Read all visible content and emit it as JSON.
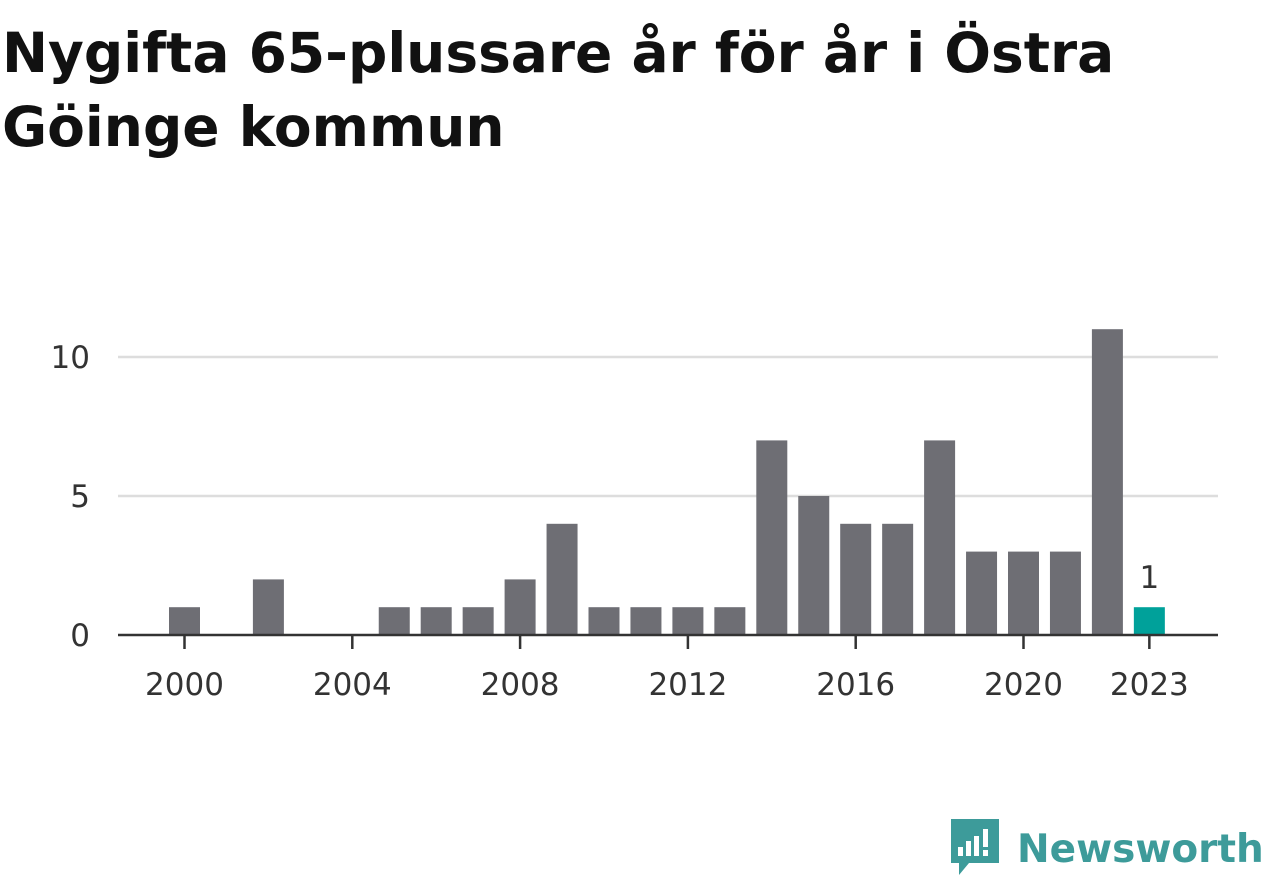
{
  "title": "Nygifta 65-plussare år för år i Östra Göinge kommun",
  "brand": {
    "name": "Newsworthy",
    "icon": "newsworthy-logo-icon",
    "color": "#3d9b9a"
  },
  "colors": {
    "bar": "#6e6e74",
    "highlight": "#00a19a",
    "grid": "#dddddd",
    "axis": "#333333"
  },
  "chart_data": {
    "type": "bar",
    "categories": [
      2000,
      2001,
      2002,
      2003,
      2004,
      2005,
      2006,
      2007,
      2008,
      2009,
      2010,
      2011,
      2012,
      2013,
      2014,
      2015,
      2016,
      2017,
      2018,
      2019,
      2020,
      2021,
      2022,
      2023
    ],
    "values": [
      1,
      0,
      2,
      0,
      0,
      1,
      1,
      1,
      2,
      4,
      1,
      1,
      1,
      1,
      7,
      5,
      4,
      4,
      7,
      3,
      3,
      3,
      11,
      1
    ],
    "highlight_index": 23,
    "x_tick_labels": [
      "2000",
      "2004",
      "2008",
      "2012",
      "2016",
      "2020",
      "2023"
    ],
    "y_ticks": [
      0,
      5,
      10
    ],
    "ylim": [
      0,
      11
    ],
    "data_labels": [
      {
        "category": 2023,
        "text": "1"
      }
    ],
    "grid": true,
    "legend": "none",
    "xlabel": "",
    "ylabel": ""
  }
}
